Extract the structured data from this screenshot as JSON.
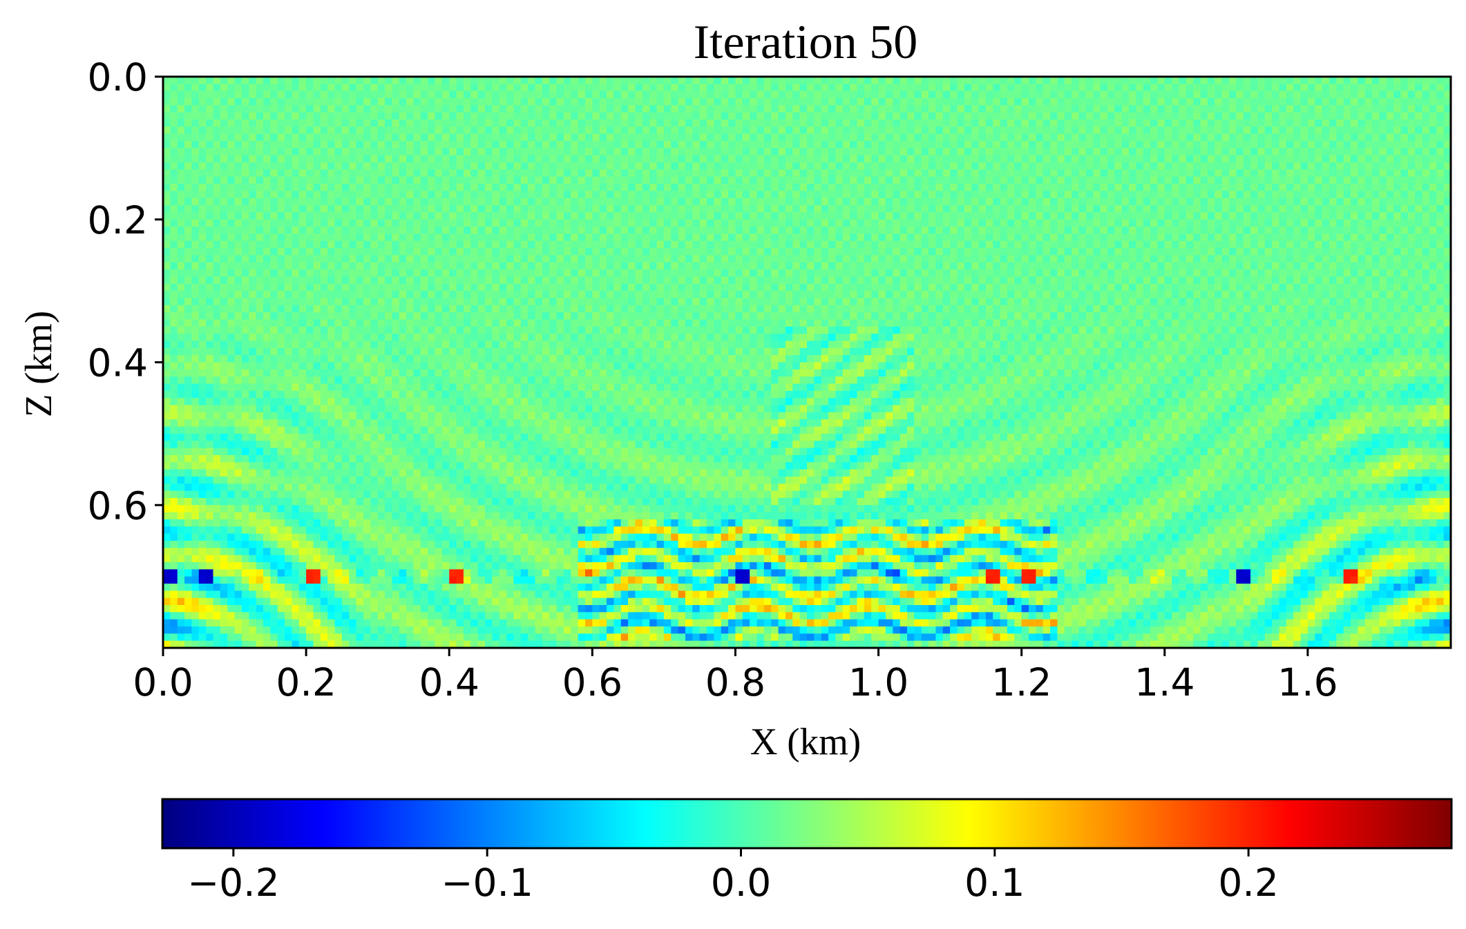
{
  "chart_data": {
    "type": "heatmap",
    "title": "Iteration 50",
    "xlabel": "X (km)",
    "ylabel": "Z (km)",
    "x_ticks": [
      {
        "value": 0.0,
        "label": "0.0"
      },
      {
        "value": 0.2,
        "label": "0.2"
      },
      {
        "value": 0.4,
        "label": "0.4"
      },
      {
        "value": 0.6,
        "label": "0.6"
      },
      {
        "value": 0.8,
        "label": "0.8"
      },
      {
        "value": 1.0,
        "label": "1.0"
      },
      {
        "value": 1.2,
        "label": "1.2"
      },
      {
        "value": 1.4,
        "label": "1.4"
      },
      {
        "value": 1.6,
        "label": "1.6"
      }
    ],
    "y_ticks": [
      {
        "value": 0.0,
        "label": "0.0"
      },
      {
        "value": 0.2,
        "label": "0.2"
      },
      {
        "value": 0.4,
        "label": "0.4"
      },
      {
        "value": 0.6,
        "label": "0.6"
      }
    ],
    "xlim": [
      0.0,
      1.8
    ],
    "ylim": [
      0.0,
      0.8
    ],
    "y_inverted": true,
    "colormap": "jet",
    "colorbar": {
      "orientation": "horizontal",
      "placement": "bottom",
      "vmin": -0.228,
      "vmax": 0.28,
      "ticks": [
        {
          "value": -0.2,
          "label": "−0.2"
        },
        {
          "value": -0.1,
          "label": "−0.1"
        },
        {
          "value": 0.0,
          "label": "0.0"
        },
        {
          "value": 0.1,
          "label": "0.1"
        },
        {
          "value": 0.2,
          "label": "0.2"
        }
      ]
    },
    "features": {
      "reflector_depth_km": 0.7,
      "strong_positive_x_km": [
        0.21,
        0.41,
        1.16,
        1.21,
        1.66
      ],
      "strong_negative_x_km": [
        0.01,
        0.06,
        0.81,
        1.51
      ],
      "anomaly_band_x_km": [
        0.58,
        1.25
      ],
      "anomaly_band_z_km": [
        0.62,
        0.79
      ]
    }
  }
}
